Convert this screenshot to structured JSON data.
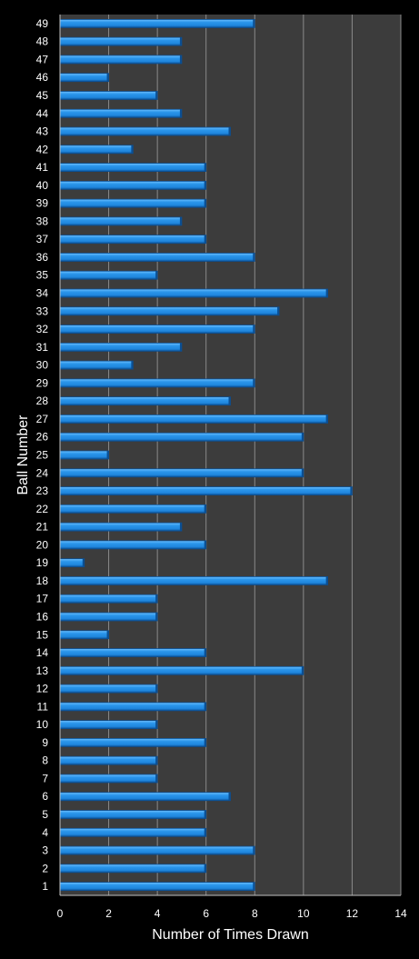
{
  "chart_data": {
    "type": "bar",
    "orientation": "horizontal",
    "title": "",
    "xlabel": "Number of Times Drawn",
    "ylabel": "Ball Number",
    "xlim": [
      0,
      14
    ],
    "xticks": [
      "0",
      "2",
      "4",
      "6",
      "8",
      "10",
      "12",
      "14"
    ],
    "grid": true,
    "legend": "none",
    "categories": [
      "1",
      "2",
      "3",
      "4",
      "5",
      "6",
      "7",
      "8",
      "9",
      "10",
      "11",
      "12",
      "13",
      "14",
      "15",
      "16",
      "17",
      "18",
      "19",
      "20",
      "21",
      "22",
      "23",
      "24",
      "25",
      "26",
      "27",
      "28",
      "29",
      "30",
      "31",
      "32",
      "33",
      "34",
      "35",
      "36",
      "37",
      "38",
      "39",
      "40",
      "41",
      "42",
      "43",
      "44",
      "45",
      "46",
      "47",
      "48",
      "49"
    ],
    "values": [
      8,
      6,
      8,
      6,
      6,
      7,
      4,
      4,
      6,
      4,
      6,
      4,
      10,
      6,
      2,
      4,
      4,
      11,
      1,
      6,
      5,
      6,
      12,
      10,
      2,
      10,
      11,
      7,
      8,
      3,
      5,
      8,
      9,
      11,
      4,
      8,
      6,
      5,
      6,
      6,
      6,
      3,
      7,
      5,
      4,
      2,
      5,
      5,
      8
    ],
    "colors": {
      "background": "#000000",
      "plot_area": "#3c3c3c",
      "grid": "#8a8a8a",
      "bar_main": "#1f86dd",
      "bar_highlight": "#6cc0ff",
      "bar_shadow": "#0b4f93",
      "text": "#ffffff"
    }
  }
}
